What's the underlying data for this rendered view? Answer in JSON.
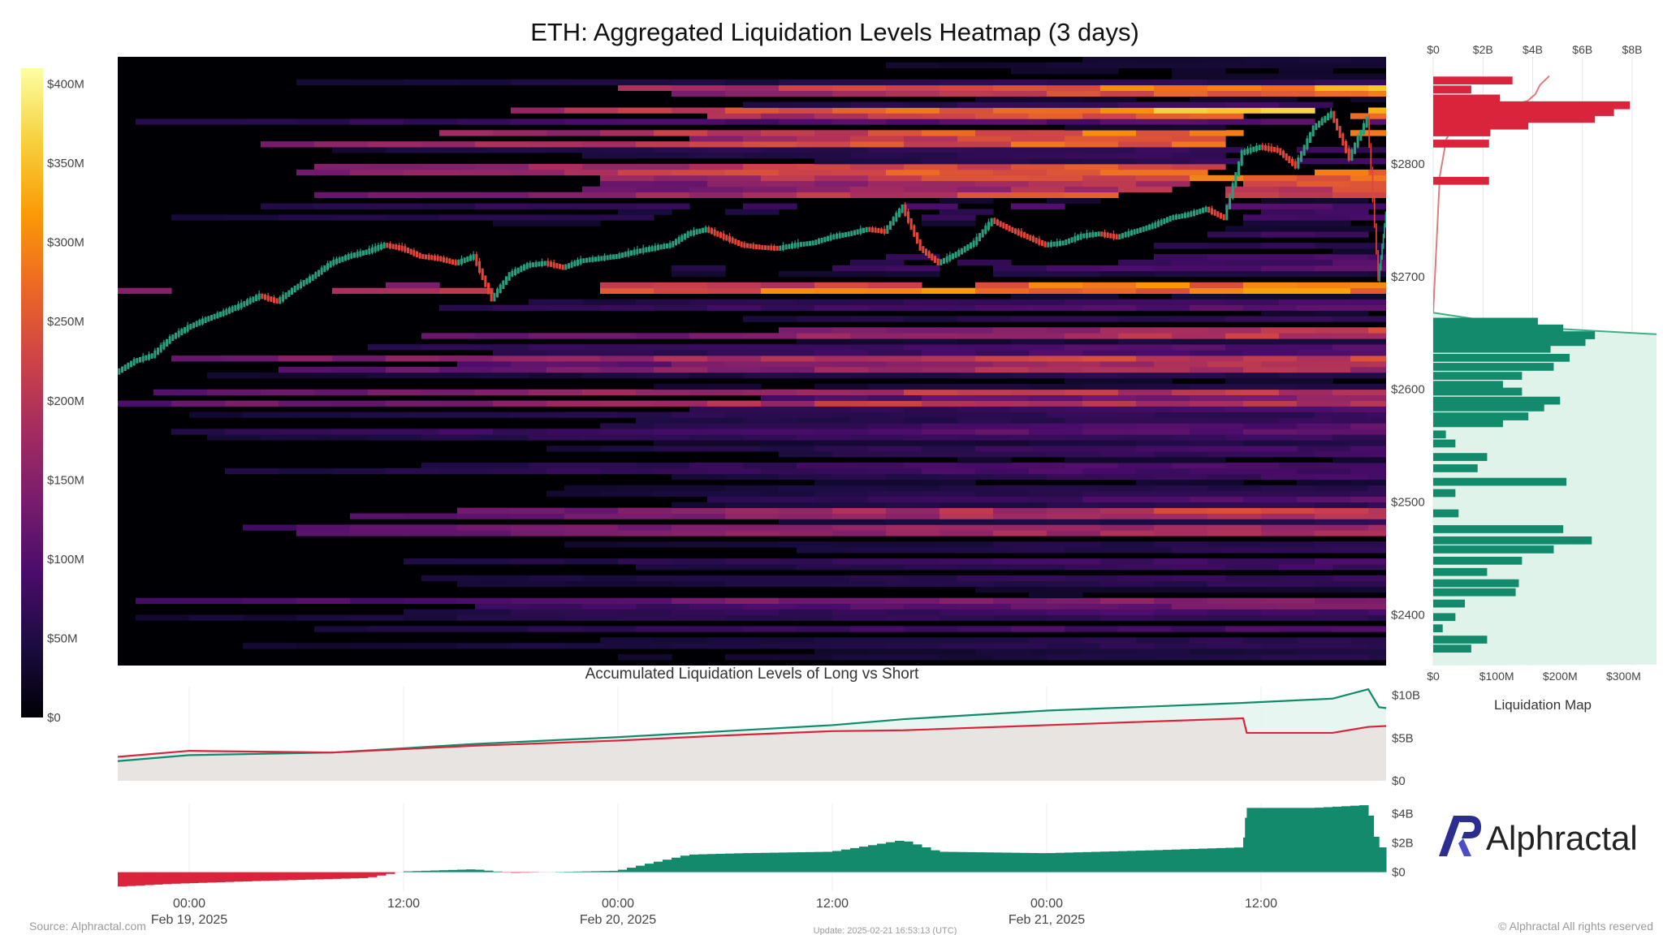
{
  "title": "ETH: Aggregated Liquidation Levels Heatmap (3 days)",
  "brand": {
    "name": "Alphractal",
    "color": "#2b2d8f"
  },
  "footer": {
    "source": "Source: Alphractal.com",
    "update": "Update: 2025-02-21 16:53:13 (UTC)",
    "rights": "© Alphractal All rights reserved"
  },
  "colors": {
    "long": "#138a6b",
    "short": "#d9243c",
    "scale": [
      "#000004",
      "#1b0c41",
      "#4a0c6b",
      "#781c6d",
      "#a52c60",
      "#cf4446",
      "#ed6925",
      "#fb9b06",
      "#f7d13d",
      "#fcffa4"
    ]
  },
  "chart_data": [
    {
      "type": "heatmap",
      "title": "ETH: Aggregated Liquidation Levels Heatmap (3 days)",
      "x_ticks": [
        {
          "time": "00:00",
          "date": "Feb 19, 2025",
          "hours": 4
        },
        {
          "time": "12:00",
          "date": "",
          "hours": 16
        },
        {
          "time": "00:00",
          "date": "Feb 20, 2025",
          "hours": 28
        },
        {
          "time": "12:00",
          "date": "",
          "hours": 40
        },
        {
          "time": "00:00",
          "date": "Feb 21, 2025",
          "hours": 52
        },
        {
          "time": "12:00",
          "date": "",
          "hours": 64
        }
      ],
      "x_range_hours": [
        0,
        71
      ],
      "y_range": [
        2355,
        2895
      ],
      "y_ticks": [
        "$2400",
        "$2500",
        "$2600",
        "$2700",
        "$2800"
      ],
      "y_tick_values": [
        2400,
        2500,
        2600,
        2700,
        2800
      ],
      "colorbar_ticks": [
        "$0",
        "$50M",
        "$100M",
        "$150M",
        "$200M",
        "$250M",
        "$300M",
        "$350M",
        "$400M"
      ],
      "colorbar_range": [
        0,
        410
      ],
      "price_path": [
        [
          0,
          2615
        ],
        [
          1,
          2625
        ],
        [
          2,
          2630
        ],
        [
          3,
          2645
        ],
        [
          4,
          2655
        ],
        [
          5,
          2662
        ],
        [
          6,
          2668
        ],
        [
          7,
          2675
        ],
        [
          8,
          2683
        ],
        [
          9,
          2678
        ],
        [
          10,
          2690
        ],
        [
          11,
          2700
        ],
        [
          12,
          2712
        ],
        [
          13,
          2718
        ],
        [
          14,
          2722
        ],
        [
          15,
          2728
        ],
        [
          16,
          2725
        ],
        [
          17,
          2718
        ],
        [
          18,
          2716
        ],
        [
          19,
          2712
        ],
        [
          20,
          2718
        ],
        [
          21,
          2680
        ],
        [
          22,
          2702
        ],
        [
          23,
          2710
        ],
        [
          24,
          2712
        ],
        [
          25,
          2708
        ],
        [
          26,
          2714
        ],
        [
          27,
          2716
        ],
        [
          28,
          2718
        ],
        [
          29,
          2722
        ],
        [
          30,
          2725
        ],
        [
          31,
          2728
        ],
        [
          32,
          2738
        ],
        [
          33,
          2742
        ],
        [
          34,
          2735
        ],
        [
          35,
          2728
        ],
        [
          36,
          2726
        ],
        [
          37,
          2725
        ],
        [
          38,
          2728
        ],
        [
          39,
          2730
        ],
        [
          40,
          2735
        ],
        [
          41,
          2738
        ],
        [
          42,
          2742
        ],
        [
          43,
          2740
        ],
        [
          44,
          2762
        ],
        [
          45,
          2725
        ],
        [
          46,
          2712
        ],
        [
          47,
          2720
        ],
        [
          48,
          2730
        ],
        [
          49,
          2750
        ],
        [
          50,
          2742
        ],
        [
          51,
          2735
        ],
        [
          52,
          2728
        ],
        [
          53,
          2730
        ],
        [
          54,
          2736
        ],
        [
          55,
          2738
        ],
        [
          56,
          2735
        ],
        [
          57,
          2740
        ],
        [
          58,
          2745
        ],
        [
          59,
          2752
        ],
        [
          60,
          2755
        ],
        [
          61,
          2760
        ],
        [
          62,
          2752
        ],
        [
          63,
          2810
        ],
        [
          64,
          2815
        ],
        [
          65,
          2812
        ],
        [
          66,
          2798
        ],
        [
          67,
          2832
        ],
        [
          68,
          2845
        ],
        [
          69,
          2805
        ],
        [
          70,
          2840
        ],
        [
          70.6,
          2698
        ],
        [
          71,
          2755
        ]
      ]
    },
    {
      "type": "bar",
      "title": "Liquidation Map",
      "orientation": "horizontal",
      "top_ticks": [
        "$0",
        "$2B",
        "$4B",
        "$6B",
        "$8B"
      ],
      "bottom_ticks": [
        "$0",
        "$100M",
        "$200M",
        "$300M"
      ],
      "short_bars": [
        {
          "price": 2874,
          "value": 125
        },
        {
          "price": 2866,
          "value": 60
        },
        {
          "price": 2858,
          "value": 105
        },
        {
          "price": 2852,
          "value": 310
        },
        {
          "price": 2846,
          "value": 285
        },
        {
          "price": 2840,
          "value": 255
        },
        {
          "price": 2834,
          "value": 150
        },
        {
          "price": 2828,
          "value": 90
        },
        {
          "price": 2818,
          "value": 88
        },
        {
          "price": 2785,
          "value": 88
        }
      ],
      "long_bars": [
        {
          "price": 2660,
          "value": 165
        },
        {
          "price": 2654,
          "value": 205
        },
        {
          "price": 2648,
          "value": 255
        },
        {
          "price": 2642,
          "value": 240
        },
        {
          "price": 2636,
          "value": 185
        },
        {
          "price": 2628,
          "value": 215
        },
        {
          "price": 2620,
          "value": 190
        },
        {
          "price": 2612,
          "value": 140
        },
        {
          "price": 2604,
          "value": 110
        },
        {
          "price": 2598,
          "value": 140
        },
        {
          "price": 2590,
          "value": 200
        },
        {
          "price": 2584,
          "value": 175
        },
        {
          "price": 2576,
          "value": 150
        },
        {
          "price": 2570,
          "value": 110
        },
        {
          "price": 2560,
          "value": 20
        },
        {
          "price": 2552,
          "value": 35
        },
        {
          "price": 2540,
          "value": 85
        },
        {
          "price": 2530,
          "value": 70
        },
        {
          "price": 2518,
          "value": 210
        },
        {
          "price": 2508,
          "value": 35
        },
        {
          "price": 2490,
          "value": 40
        },
        {
          "price": 2476,
          "value": 205
        },
        {
          "price": 2466,
          "value": 250
        },
        {
          "price": 2458,
          "value": 190
        },
        {
          "price": 2448,
          "value": 140
        },
        {
          "price": 2438,
          "value": 85
        },
        {
          "price": 2428,
          "value": 135
        },
        {
          "price": 2420,
          "value": 130
        },
        {
          "price": 2410,
          "value": 50
        },
        {
          "price": 2398,
          "value": 35
        },
        {
          "price": 2388,
          "value": 15
        },
        {
          "price": 2378,
          "value": 85
        },
        {
          "price": 2370,
          "value": 60
        }
      ],
      "cumulative_long_total": 8000
    },
    {
      "type": "line",
      "title": "Accumulated Liquidation Levels of Long vs Short",
      "y_ticks": [
        "$0",
        "$5B",
        "$10B"
      ],
      "ylim": [
        0,
        11
      ],
      "series": [
        {
          "name": "Long",
          "color": "#138a6b",
          "points": [
            [
              0,
              2.3
            ],
            [
              4,
              3.0
            ],
            [
              12,
              3.3
            ],
            [
              20,
              4.3
            ],
            [
              28,
              5.1
            ],
            [
              34,
              5.8
            ],
            [
              40,
              6.5
            ],
            [
              44,
              7.2
            ],
            [
              52,
              8.2
            ],
            [
              63,
              9.1
            ],
            [
              68,
              9.6
            ],
            [
              70,
              10.7
            ],
            [
              70.6,
              8.6
            ],
            [
              71,
              8.5
            ]
          ]
        },
        {
          "name": "Short",
          "color": "#d9243c",
          "points": [
            [
              0,
              2.8
            ],
            [
              4,
              3.5
            ],
            [
              12,
              3.3
            ],
            [
              20,
              4.1
            ],
            [
              28,
              4.7
            ],
            [
              34,
              5.3
            ],
            [
              40,
              5.8
            ],
            [
              44,
              5.9
            ],
            [
              52,
              6.5
            ],
            [
              63,
              7.3
            ],
            [
              63.2,
              5.6
            ],
            [
              68,
              5.6
            ],
            [
              70,
              6.3
            ],
            [
              71,
              6.4
            ]
          ]
        }
      ]
    },
    {
      "type": "area",
      "title": "",
      "y_ticks": [
        "$0",
        "$2B",
        "$4B"
      ],
      "ylim": [
        -1.3,
        4.7
      ],
      "points": [
        [
          0,
          -1.0
        ],
        [
          3,
          -0.8
        ],
        [
          8,
          -0.6
        ],
        [
          14,
          -0.4
        ],
        [
          16,
          0.05
        ],
        [
          20,
          0.2
        ],
        [
          22,
          -0.05
        ],
        [
          28,
          0.1
        ],
        [
          32,
          1.2
        ],
        [
          35,
          1.3
        ],
        [
          40,
          1.4
        ],
        [
          44,
          2.2
        ],
        [
          46,
          1.4
        ],
        [
          52,
          1.3
        ],
        [
          58,
          1.5
        ],
        [
          63,
          1.7
        ],
        [
          63.2,
          4.4
        ],
        [
          67,
          4.4
        ],
        [
          70,
          4.6
        ],
        [
          70.6,
          1.7
        ],
        [
          71,
          1.7
        ]
      ]
    }
  ]
}
